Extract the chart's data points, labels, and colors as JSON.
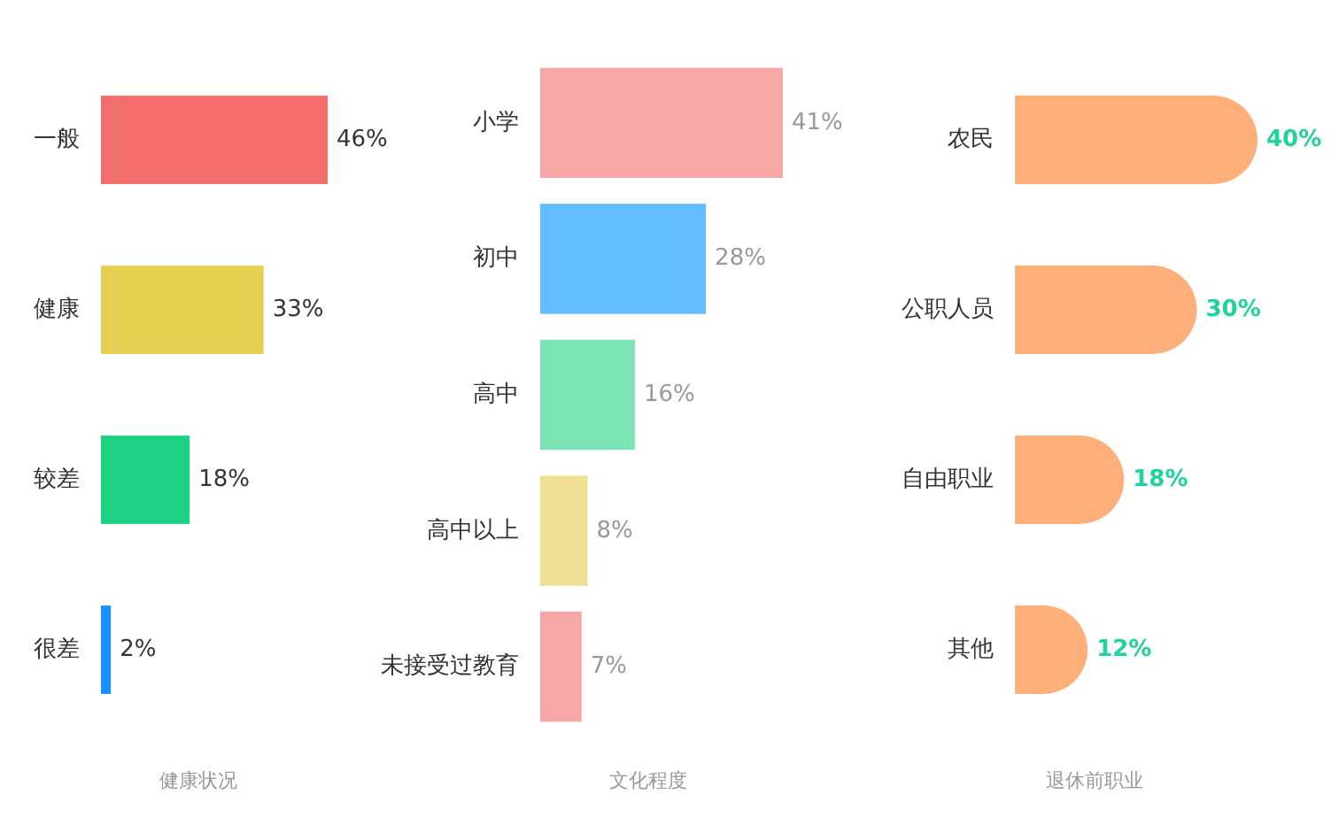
{
  "chart_data": [
    {
      "type": "bar",
      "orientation": "horizontal",
      "xlabel": "健康状况",
      "categories": [
        "一般",
        "健康",
        "较差",
        "很差"
      ],
      "values": [
        46,
        33,
        18,
        2
      ],
      "value_labels": [
        "46%",
        "33%",
        "18%",
        "2%"
      ],
      "colors": [
        "#f46d6d",
        "#e6ce50",
        "#1fd283",
        "#1890ff"
      ]
    },
    {
      "type": "bar",
      "orientation": "horizontal",
      "xlabel": "文化程度",
      "categories": [
        "小学",
        "初中",
        "高中",
        "高中以上",
        "未接受过教育"
      ],
      "values": [
        41,
        28,
        16,
        8,
        7
      ],
      "value_labels": [
        "41%",
        "28%",
        "16%",
        "8%",
        "7%"
      ],
      "colors": [
        "#f8a7a7",
        "#64bdff",
        "#7be3b4",
        "#f0e096",
        "#f8a7a7"
      ]
    },
    {
      "type": "bar",
      "orientation": "horizontal",
      "xlabel": "退休前职业",
      "categories": [
        "农民",
        "公职人员",
        "自由职业",
        "其他"
      ],
      "values": [
        40,
        30,
        18,
        12
      ],
      "value_labels": [
        "40%",
        "30%",
        "18%",
        "12%"
      ],
      "colors": [
        "#ffb07a",
        "#ffb07a",
        "#ffb07a",
        "#ffb07a"
      ]
    }
  ]
}
